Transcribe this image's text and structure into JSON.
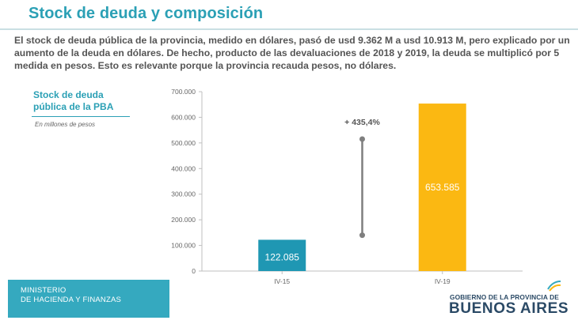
{
  "slide": {
    "title": "Stock de deuda y composición",
    "intro": "El stock de deuda pública de la provincia, medido en dólares, pasó de usd 9.362 M a usd 10.913 M, pero explicado por un aumento de la deuda en dólares. De hecho, producto de las devaluaciones de 2018 y 2019, la deuda se multiplicó por 5 medida en pesos. Esto es relevante porque la provincia recauda pesos, no dólares."
  },
  "panel": {
    "title": "Stock de deuda pública de la PBA",
    "subtitle": "En millones de pesos"
  },
  "footer": {
    "ministry": "MINISTERIO\nDE HACIENDA Y FINANZAS",
    "gov_line1": "GOBIERNO DE LA PROVINCIA DE",
    "gov_line2": "BUENOS AIRES"
  },
  "chart_data": {
    "type": "bar",
    "categories": [
      "IV-15",
      "IV-19"
    ],
    "values": [
      122085,
      653585
    ],
    "value_labels": [
      "122.085",
      "653.585"
    ],
    "ylim": [
      0,
      700000
    ],
    "yticks": [
      0,
      100000,
      200000,
      300000,
      400000,
      500000,
      600000,
      700000
    ],
    "ytick_labels": [
      "0",
      "100.000",
      "200.000",
      "300.000",
      "400.000",
      "500.000",
      "600.000",
      "700.000"
    ],
    "grid": false,
    "colors": {
      "IV-15": "#1f97b3",
      "IV-19": "#fbb812"
    },
    "annotation": {
      "text": "+ 435,4%",
      "from_value": 140000,
      "to_value": 515000
    },
    "title": "",
    "xlabel": "",
    "ylabel": ""
  }
}
